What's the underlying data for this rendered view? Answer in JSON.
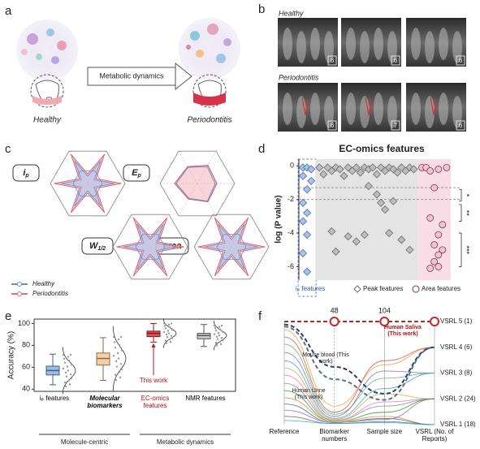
{
  "panel_labels": [
    "a",
    "b",
    "c",
    "d",
    "e",
    "f"
  ],
  "panel_a": {
    "start": "Healthy",
    "arrow": "Metabolic dynamics",
    "end": "Periodontitis"
  },
  "panel_b": {
    "rows": [
      {
        "label": "Healthy",
        "image_labels": [
          "6",
          "6",
          "6"
        ]
      },
      {
        "label": "Periodontitis",
        "image_labels": [
          "6",
          "7",
          "6"
        ]
      }
    ]
  },
  "panel_c": {
    "plots": [
      {
        "main": "i",
        "sub": "p"
      },
      {
        "main": "E",
        "sub": "p"
      },
      {
        "main": "W",
        "sub": "1/2"
      },
      {
        "main": "area"
      }
    ],
    "legend": [
      "Healthy",
      "Periodontitis"
    ]
  },
  "chart_data": [
    {
      "type": "scatter",
      "title": "EC-omics features",
      "ylabel": "log (P value)",
      "xlim": [
        0,
        38
      ],
      "ylim": [
        -6.8,
        0.4
      ],
      "yticks": [
        0,
        -2,
        -4,
        -6
      ],
      "reference_lines": [
        -1.3,
        -2
      ],
      "brackets": [
        {
          "label": "*",
          "range": [
            -1.4,
            -2.1
          ]
        },
        {
          "label": "**",
          "range": [
            -2.3,
            -3.3
          ]
        },
        {
          "label": "***",
          "range": [
            -4,
            -6
          ]
        }
      ],
      "series": [
        {
          "name": "iₚ features",
          "color": "#a8c3e6",
          "edge": "#4a6fa8",
          "marker": "diamond",
          "x": [
            1,
            2,
            3,
            1,
            2,
            3,
            1,
            2,
            1,
            2,
            1,
            2
          ],
          "values": [
            -0.1,
            -0.1,
            -0.2,
            -0.6,
            -1.4,
            -0.9,
            -2.2,
            -2.8,
            -3.3,
            -4.1,
            -5.2,
            -6.3
          ]
        },
        {
          "name": "Peak features",
          "color": "#bdbdbd",
          "edge": "#6a6a6a",
          "marker": "diamond",
          "x": [
            5,
            6,
            7,
            8,
            9,
            10,
            11,
            12,
            13,
            14,
            15,
            16,
            17,
            18,
            19,
            20,
            21,
            22,
            23,
            24,
            25,
            26,
            27,
            28,
            8,
            9,
            12,
            14,
            16,
            17,
            19,
            20,
            21,
            22,
            23,
            25,
            27
          ],
          "values": [
            -0.1,
            -0.5,
            -0.1,
            -0.3,
            -0.1,
            -0.2,
            -0.6,
            -0.1,
            -0.3,
            -0.1,
            -0.4,
            -0.1,
            -0.2,
            -0.1,
            -0.5,
            -0.1,
            -0.3,
            -0.1,
            -0.2,
            -0.4,
            -0.1,
            -0.3,
            -0.1,
            -0.2,
            -3.9,
            -5.1,
            -4.2,
            -4.5,
            -4.1,
            -1.2,
            -1.7,
            -2.2,
            -2.6,
            -4.0,
            -2.1,
            -4.4,
            -5.0
          ]
        },
        {
          "name": "Area features",
          "color": "#f2c4d3",
          "edge": "#7a3b4c",
          "marker": "circle",
          "x": [
            30,
            31,
            32,
            34,
            36,
            33,
            32,
            35,
            34,
            33,
            35,
            34,
            33,
            34,
            32
          ],
          "values": [
            -0.1,
            -0.1,
            -0.3,
            -0.2,
            -0.1,
            -1.3,
            -3.1,
            -3.5,
            -4.1,
            -4.7,
            -5.0,
            -5.3,
            -5.7,
            -6.0,
            -6.1
          ]
        }
      ]
    },
    {
      "type": "box",
      "ylabel": "Accuracy (%)",
      "ylim": [
        38,
        104
      ],
      "yticks": [
        40,
        60,
        80,
        100
      ],
      "categories": [
        "iₚ features",
        "Molecular biomarkers",
        "EC-omics features",
        "NMR features"
      ],
      "colors": [
        "#9dbfe3",
        "#f6cfa6",
        "#d9535b",
        "#c9c9c9"
      ],
      "edges": [
        "#3f5f8a",
        "#8a6a45",
        "#8b1a1a",
        "#555555"
      ],
      "label_colors": [
        "#000000",
        "#000000",
        "#b0141c",
        "#000000"
      ],
      "stats": [
        {
          "min": 44,
          "q1": 53,
          "median": 57,
          "q3": 61,
          "max": 72
        },
        {
          "min": 48,
          "q1": 62,
          "median": 68,
          "q3": 73,
          "max": 87
        },
        {
          "min": 83,
          "q1": 88,
          "median": 91,
          "q3": 93,
          "max": 100
        },
        {
          "min": 79,
          "q1": 86,
          "median": 89,
          "q3": 91,
          "max": 99
        }
      ],
      "groups": [
        {
          "label": "Molecule-centric",
          "size": 2
        },
        {
          "label": "Metabolic dynamics",
          "size": 2
        }
      ],
      "annotation": {
        "text": "This work",
        "category": 2
      }
    },
    {
      "type": "parallel",
      "categories": [
        "Reference",
        "Biomarker numbers",
        "Sample size",
        "VSRL (No. of Reports)"
      ],
      "ylim": [
        0,
        1
      ],
      "top_values": [
        null,
        48,
        104,
        null
      ],
      "levels": [
        "VSRL 5 (1)",
        "VSRL 4 (6)",
        "VSRL 3 (8)",
        "VSRL 2 (24)",
        "VSRL 1 (18)"
      ],
      "series": [
        {
          "color": "#e8a33c",
          "values": [
            0.92,
            0.18,
            0.58,
            0.75
          ]
        },
        {
          "color": "#d9534f",
          "values": [
            0.85,
            0.12,
            0.62,
            0.75
          ]
        },
        {
          "color": "#5cb85c",
          "values": [
            0.78,
            0.1,
            0.45,
            0.5
          ]
        },
        {
          "color": "#8e6cc0",
          "values": [
            0.7,
            0.08,
            0.52,
            0.5
          ]
        },
        {
          "color": "#3fa7b5",
          "values": [
            0.62,
            0.06,
            0.35,
            0.5
          ]
        },
        {
          "color": "#c7b23a",
          "values": [
            0.55,
            0.05,
            0.3,
            0.25
          ]
        },
        {
          "color": "#e377c2",
          "values": [
            0.48,
            0.04,
            0.22,
            0.25
          ]
        },
        {
          "color": "#8c8c8c",
          "values": [
            0.4,
            0.04,
            0.18,
            0.25
          ]
        },
        {
          "color": "#2ca02c",
          "values": [
            0.33,
            0.03,
            0.12,
            0.25
          ]
        },
        {
          "color": "#ff7f0e",
          "values": [
            0.26,
            0.03,
            0.08,
            0
          ]
        },
        {
          "color": "#1f77b4",
          "values": [
            0.2,
            0.02,
            0.06,
            0
          ]
        },
        {
          "color": "#9467bd",
          "values": [
            0.14,
            0.02,
            0.05,
            0.25
          ]
        },
        {
          "color": "#8c564b",
          "values": [
            0.08,
            0.01,
            0.03,
            0
          ]
        },
        {
          "color": "#17becf",
          "values": [
            0.04,
            0.01,
            0.02,
            0
          ]
        },
        {
          "name": "Human Urine (This work)",
          "color": "#2b3f6b",
          "dashed": true,
          "values": [
            0.97,
            0.56,
            0.3,
            0.75
          ]
        },
        {
          "name": "Mouse blood (This work)",
          "color": "#5a6f8f",
          "dashed": true,
          "values": [
            0.95,
            0.44,
            0.24,
            0.75
          ]
        },
        {
          "name": "Human Saliva (This work)",
          "color": "#c0272d",
          "dashed": true,
          "markers": true,
          "values": [
            1,
            1,
            1,
            1
          ]
        }
      ]
    }
  ]
}
